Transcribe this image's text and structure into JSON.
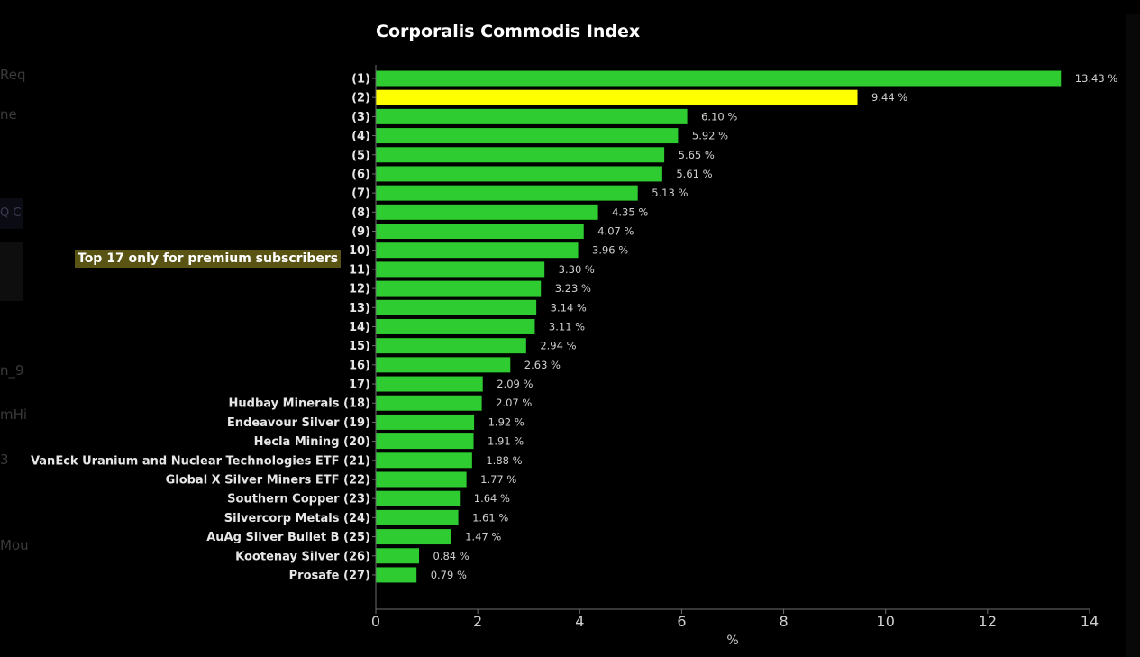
{
  "colors": {
    "background": "#000000",
    "bar": "#2ecc31",
    "highlight_bar": "#ffff00",
    "text": "#ffffff",
    "axis": "#6e6e6e",
    "value_text": "#cfcfcf",
    "badge_bg": "#5a5414"
  },
  "background_fragments": [
    "Req",
    "ne",
    "Q C",
    "n_9",
    "mHi",
    "3",
    "Mou"
  ],
  "premium_notice": "Top 17 only for premium subscribers",
  "chart_data": {
    "type": "bar",
    "orientation": "horizontal",
    "title": "Corporalis Commodis Index",
    "xlabel": "%",
    "ylabel": "",
    "xlim": [
      0,
      14
    ],
    "xticks": [
      0,
      2,
      4,
      6,
      8,
      10,
      12,
      14
    ],
    "grid": false,
    "highlight_index": 1,
    "value_suffix": " %",
    "categories": [
      "(1)",
      "(2)",
      "(3)",
      "(4)",
      "(5)",
      "(6)",
      "(7)",
      "(8)",
      "(9)",
      "10)",
      "11)",
      "12)",
      "13)",
      "14)",
      "15)",
      "16)",
      "17)",
      "Hudbay Minerals (18)",
      "Endeavour Silver (19)",
      "Hecla Mining (20)",
      "VanEck Uranium and Nuclear Technologies ETF (21)",
      "Global X Silver Miners ETF (22)",
      "Southern Copper (23)",
      "Silvercorp Metals (24)",
      "AuAg Silver Bullet B (25)",
      "Kootenay Silver (26)",
      "Prosafe (27)"
    ],
    "values": [
      13.43,
      9.44,
      6.1,
      5.92,
      5.65,
      5.61,
      5.13,
      4.35,
      4.07,
      3.96,
      3.3,
      3.23,
      3.14,
      3.11,
      2.94,
      2.63,
      2.09,
      2.07,
      1.92,
      1.91,
      1.88,
      1.77,
      1.64,
      1.61,
      1.47,
      0.84,
      0.79
    ],
    "value_labels": [
      "13.43 %",
      "9.44 %",
      "6.10 %",
      "5.92 %",
      "5.65 %",
      "5.61 %",
      "5.13 %",
      "4.35 %",
      "4.07 %",
      "3.96 %",
      "3.30 %",
      "3.23 %",
      "3.14 %",
      "3.11 %",
      "2.94 %",
      "2.63 %",
      "2.09 %",
      "2.07 %",
      "1.92 %",
      "1.91 %",
      "1.88 %",
      "1.77 %",
      "1.64 %",
      "1.61 %",
      "1.47 %",
      "0.84 %",
      "0.79 %"
    ]
  }
}
